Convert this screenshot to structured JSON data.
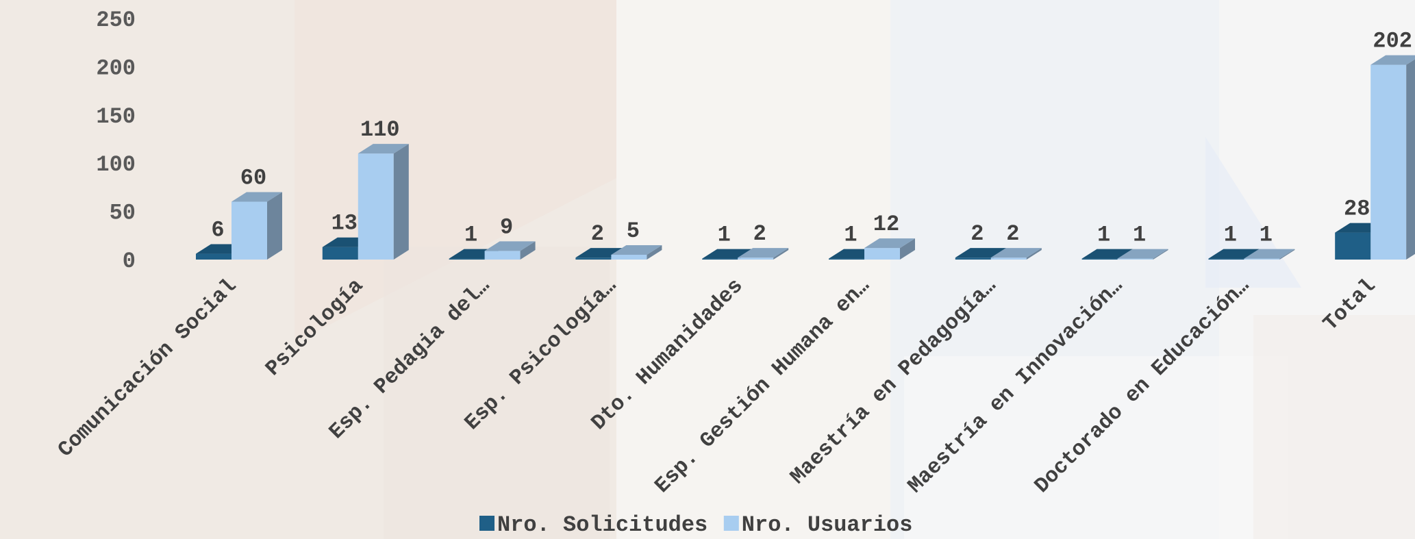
{
  "chart_data": {
    "type": "bar",
    "categories": [
      "Comunicación Social",
      "Psicología",
      "Esp. Pedagia del…",
      "Esp. Psicología…",
      "Dto. Humanidades",
      "Esp. Gestión Humana en…",
      "Maestría en Pedagogía…",
      "Maestría en Innovación…",
      "Doctorado en Educación…",
      "Total"
    ],
    "series": [
      {
        "name": "Nro. Solicitudes",
        "values": [
          6,
          13,
          1,
          2,
          1,
          1,
          2,
          1,
          1,
          28
        ],
        "color": "#1f5f87"
      },
      {
        "name": "Nro. Usuarios",
        "values": [
          60,
          110,
          9,
          5,
          2,
          12,
          2,
          1,
          1,
          202
        ],
        "color": "#a8cdf0"
      }
    ],
    "ylim": [
      0,
      250
    ],
    "yticks": [
      0,
      50,
      100,
      150,
      200,
      250
    ],
    "style": "3d-column",
    "grid": false,
    "legend_position": "bottom"
  }
}
